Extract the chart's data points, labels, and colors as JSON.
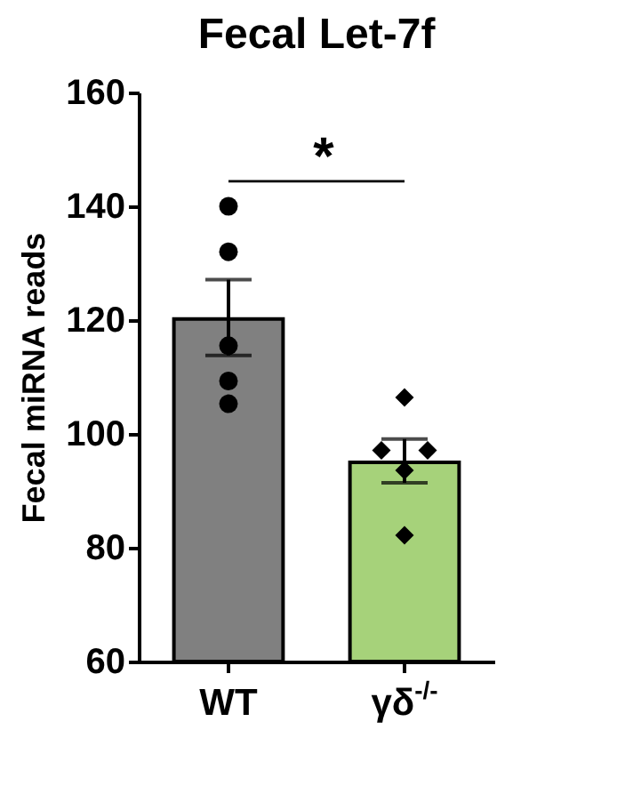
{
  "chart_data": {
    "type": "bar",
    "title": "Fecal Let-7f",
    "ylabel": "Fecal miRNA reads",
    "categories": [
      "WT",
      "γδ$^{-/-}$"
    ],
    "series": [
      {
        "colors": [
          "#808080",
          "#a6d27a"
        ],
        "values": [
          120.2,
          95
        ],
        "errors": [
          [
            113.8,
            127.1
          ],
          [
            91.4,
            99.1
          ]
        ]
      },
      {
        "type": "scatter",
        "color": "#000000",
        "marker": "circle",
        "x": [
          "WT",
          "WT",
          "WT",
          "WT",
          "WT"
        ],
        "values": [
          140,
          132,
          115.5,
          109.3,
          105.3
        ]
      },
      {
        "type": "scatter",
        "color": "#000000",
        "marker": "diamond",
        "x": [
          "γδ$^{-/-}$",
          "γδ$^{-/-}$",
          "γδ$^{-/-}$",
          "γδ$^{-/-}$",
          "γδ$^{-/-}$"
        ],
        "values": [
          106.4,
          97.1,
          97.1,
          93.6,
          82.2
        ]
      }
    ],
    "ylim": [
      60,
      160
    ],
    "yticks": [
      60,
      80,
      100,
      120,
      140,
      160
    ],
    "grid": false,
    "annotations": [
      "*"
    ]
  }
}
